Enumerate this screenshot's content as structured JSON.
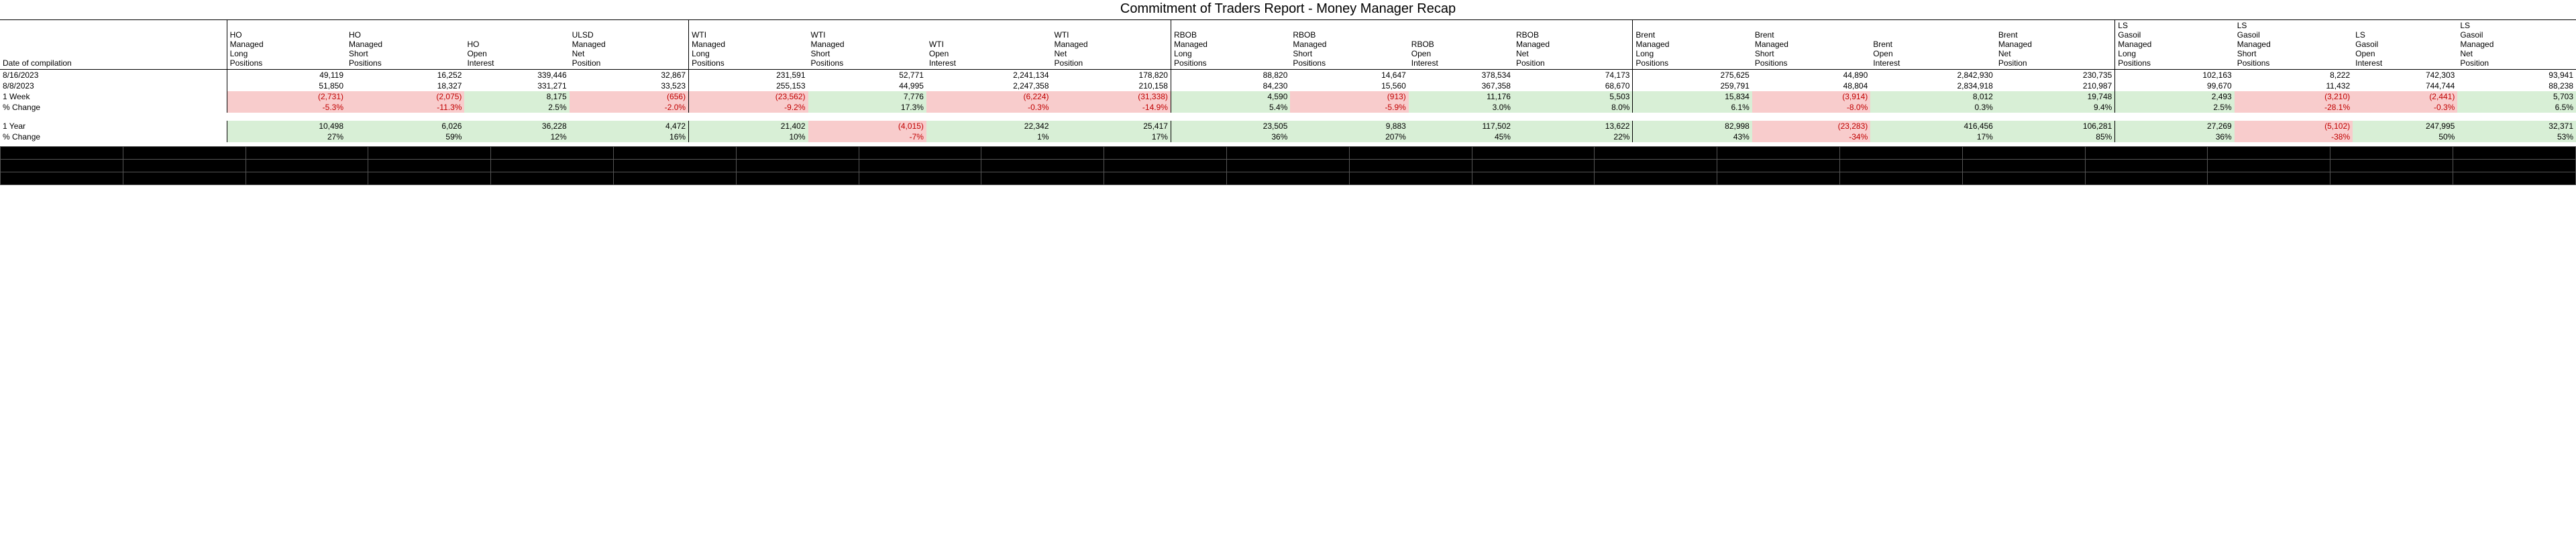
{
  "title": "Commitment of Traders Report - Money Manager Recap",
  "row_label_header": "Date of compilation",
  "groups": [
    {
      "cols": [
        "HO Managed Long Positions",
        "HO Managed Short Positions",
        "HO Open Interest",
        "ULSD Managed Net Position"
      ]
    },
    {
      "cols": [
        "WTI Managed Long Positions",
        "WTI Managed Short Positions",
        "WTI Open Interest",
        "WTI Managed Net Position"
      ]
    },
    {
      "cols": [
        "RBOB Managed Long Positions",
        "RBOB Managed Short Positions",
        "RBOB Open Interest",
        "RBOB Managed Net Position"
      ]
    },
    {
      "cols": [
        "Brent Managed Long Positions",
        "Brent Managed Short Positions",
        "Brent Open Interest",
        "Brent Managed Net Position"
      ]
    },
    {
      "cols": [
        "LS Gasoil Managed Long Positions",
        "LS Gasoil Managed Short Positions",
        "LS Gasoil Open Interest",
        "LS Gasoil Managed Net Position"
      ]
    }
  ],
  "data_rows": [
    {
      "label": "8/16/2023",
      "cells": [
        {
          "v": "49,119"
        },
        {
          "v": "16,252"
        },
        {
          "v": "339,446"
        },
        {
          "v": "32,867"
        },
        {
          "v": "231,591"
        },
        {
          "v": "52,771"
        },
        {
          "v": "2,241,134"
        },
        {
          "v": "178,820"
        },
        {
          "v": "88,820"
        },
        {
          "v": "14,647"
        },
        {
          "v": "378,534"
        },
        {
          "v": "74,173"
        },
        {
          "v": "275,625"
        },
        {
          "v": "44,890"
        },
        {
          "v": "2,842,930"
        },
        {
          "v": "230,735"
        },
        {
          "v": "102,163"
        },
        {
          "v": "8,222"
        },
        {
          "v": "742,303"
        },
        {
          "v": "93,941"
        }
      ]
    },
    {
      "label": "8/8/2023",
      "cells": [
        {
          "v": "51,850"
        },
        {
          "v": "18,327"
        },
        {
          "v": "331,271"
        },
        {
          "v": "33,523"
        },
        {
          "v": "255,153"
        },
        {
          "v": "44,995"
        },
        {
          "v": "2,247,358"
        },
        {
          "v": "210,158"
        },
        {
          "v": "84,230"
        },
        {
          "v": "15,560"
        },
        {
          "v": "367,358"
        },
        {
          "v": "68,670"
        },
        {
          "v": "259,791"
        },
        {
          "v": "48,804"
        },
        {
          "v": "2,834,918"
        },
        {
          "v": "210,987"
        },
        {
          "v": "99,670"
        },
        {
          "v": "11,432"
        },
        {
          "v": "744,744"
        },
        {
          "v": "88,238"
        }
      ]
    },
    {
      "label": "1 Week",
      "cells": [
        {
          "v": "(2,731)",
          "neg": true,
          "bg": "red"
        },
        {
          "v": "(2,075)",
          "neg": true,
          "bg": "red"
        },
        {
          "v": "8,175",
          "bg": "green"
        },
        {
          "v": "(656)",
          "neg": true,
          "bg": "red"
        },
        {
          "v": "(23,562)",
          "neg": true,
          "bg": "red"
        },
        {
          "v": "7,776",
          "bg": "green"
        },
        {
          "v": "(6,224)",
          "neg": true,
          "bg": "red"
        },
        {
          "v": "(31,338)",
          "neg": true,
          "bg": "red"
        },
        {
          "v": "4,590",
          "bg": "green"
        },
        {
          "v": "(913)",
          "neg": true,
          "bg": "red"
        },
        {
          "v": "11,176",
          "bg": "green"
        },
        {
          "v": "5,503",
          "bg": "green"
        },
        {
          "v": "15,834",
          "bg": "green"
        },
        {
          "v": "(3,914)",
          "neg": true,
          "bg": "red"
        },
        {
          "v": "8,012",
          "bg": "green"
        },
        {
          "v": "19,748",
          "bg": "green"
        },
        {
          "v": "2,493",
          "bg": "green"
        },
        {
          "v": "(3,210)",
          "neg": true,
          "bg": "red"
        },
        {
          "v": "(2,441)",
          "neg": true,
          "bg": "red"
        },
        {
          "v": "5,703",
          "bg": "green"
        }
      ]
    },
    {
      "label": "% Change",
      "cells": [
        {
          "v": "-5.3%",
          "neg": true,
          "bg": "red"
        },
        {
          "v": "-11.3%",
          "neg": true,
          "bg": "red"
        },
        {
          "v": "2.5%",
          "bg": "green"
        },
        {
          "v": "-2.0%",
          "neg": true,
          "bg": "red"
        },
        {
          "v": "-9.2%",
          "neg": true,
          "bg": "red"
        },
        {
          "v": "17.3%",
          "bg": "green"
        },
        {
          "v": "-0.3%",
          "neg": true,
          "bg": "red"
        },
        {
          "v": "-14.9%",
          "neg": true,
          "bg": "red"
        },
        {
          "v": "5.4%",
          "bg": "green"
        },
        {
          "v": "-5.9%",
          "neg": true,
          "bg": "red"
        },
        {
          "v": "3.0%",
          "bg": "green"
        },
        {
          "v": "8.0%",
          "bg": "green"
        },
        {
          "v": "6.1%",
          "bg": "green"
        },
        {
          "v": "-8.0%",
          "neg": true,
          "bg": "red"
        },
        {
          "v": "0.3%",
          "bg": "green"
        },
        {
          "v": "9.4%",
          "bg": "green"
        },
        {
          "v": "2.5%",
          "bg": "green"
        },
        {
          "v": "-28.1%",
          "neg": true,
          "bg": "red"
        },
        {
          "v": "-0.3%",
          "neg": true,
          "bg": "red"
        },
        {
          "v": "6.5%",
          "bg": "green"
        }
      ]
    },
    {
      "label": "",
      "spacer": true
    },
    {
      "label": "1 Year",
      "cells": [
        {
          "v": "10,498",
          "bg": "green"
        },
        {
          "v": "6,026",
          "bg": "green"
        },
        {
          "v": "36,228",
          "bg": "green"
        },
        {
          "v": "4,472",
          "bg": "green"
        },
        {
          "v": "21,402",
          "bg": "green"
        },
        {
          "v": "(4,015)",
          "neg": true,
          "bg": "red"
        },
        {
          "v": "22,342",
          "bg": "green"
        },
        {
          "v": "25,417",
          "bg": "green"
        },
        {
          "v": "23,505",
          "bg": "green"
        },
        {
          "v": "9,883",
          "bg": "green"
        },
        {
          "v": "117,502",
          "bg": "green"
        },
        {
          "v": "13,622",
          "bg": "green"
        },
        {
          "v": "82,998",
          "bg": "green"
        },
        {
          "v": "(23,283)",
          "neg": true,
          "bg": "red"
        },
        {
          "v": "416,456",
          "bg": "green"
        },
        {
          "v": "106,281",
          "bg": "green"
        },
        {
          "v": "27,269",
          "bg": "green"
        },
        {
          "v": "(5,102)",
          "neg": true,
          "bg": "red"
        },
        {
          "v": "247,995",
          "bg": "green"
        },
        {
          "v": "32,371",
          "bg": "green"
        }
      ]
    },
    {
      "label": "% Change",
      "cells": [
        {
          "v": "27%",
          "bg": "green"
        },
        {
          "v": "59%",
          "bg": "green"
        },
        {
          "v": "12%",
          "bg": "green"
        },
        {
          "v": "16%",
          "bg": "green"
        },
        {
          "v": "10%",
          "bg": "green"
        },
        {
          "v": "-7%",
          "neg": true,
          "bg": "red"
        },
        {
          "v": "1%",
          "bg": "green"
        },
        {
          "v": "17%",
          "bg": "green"
        },
        {
          "v": "36%",
          "bg": "green"
        },
        {
          "v": "207%",
          "bg": "green"
        },
        {
          "v": "45%",
          "bg": "green"
        },
        {
          "v": "22%",
          "bg": "green"
        },
        {
          "v": "43%",
          "bg": "green"
        },
        {
          "v": "-34%",
          "neg": true,
          "bg": "red"
        },
        {
          "v": "17%",
          "bg": "green"
        },
        {
          "v": "85%",
          "bg": "green"
        },
        {
          "v": "36%",
          "bg": "green"
        },
        {
          "v": "-38%",
          "neg": true,
          "bg": "red"
        },
        {
          "v": "50%",
          "bg": "green"
        },
        {
          "v": "53%",
          "bg": "green"
        }
      ]
    }
  ],
  "styles": {
    "title_fontsize": 20,
    "body_fontsize": 12,
    "bg_red": "#f8cccc",
    "bg_green": "#d8efd6",
    "neg_color": "#c00000",
    "border_color": "#000000",
    "mangled_bg": "#000000",
    "mangled_border": "#555555"
  },
  "mangled_rows": 3,
  "mangled_cols": 21
}
